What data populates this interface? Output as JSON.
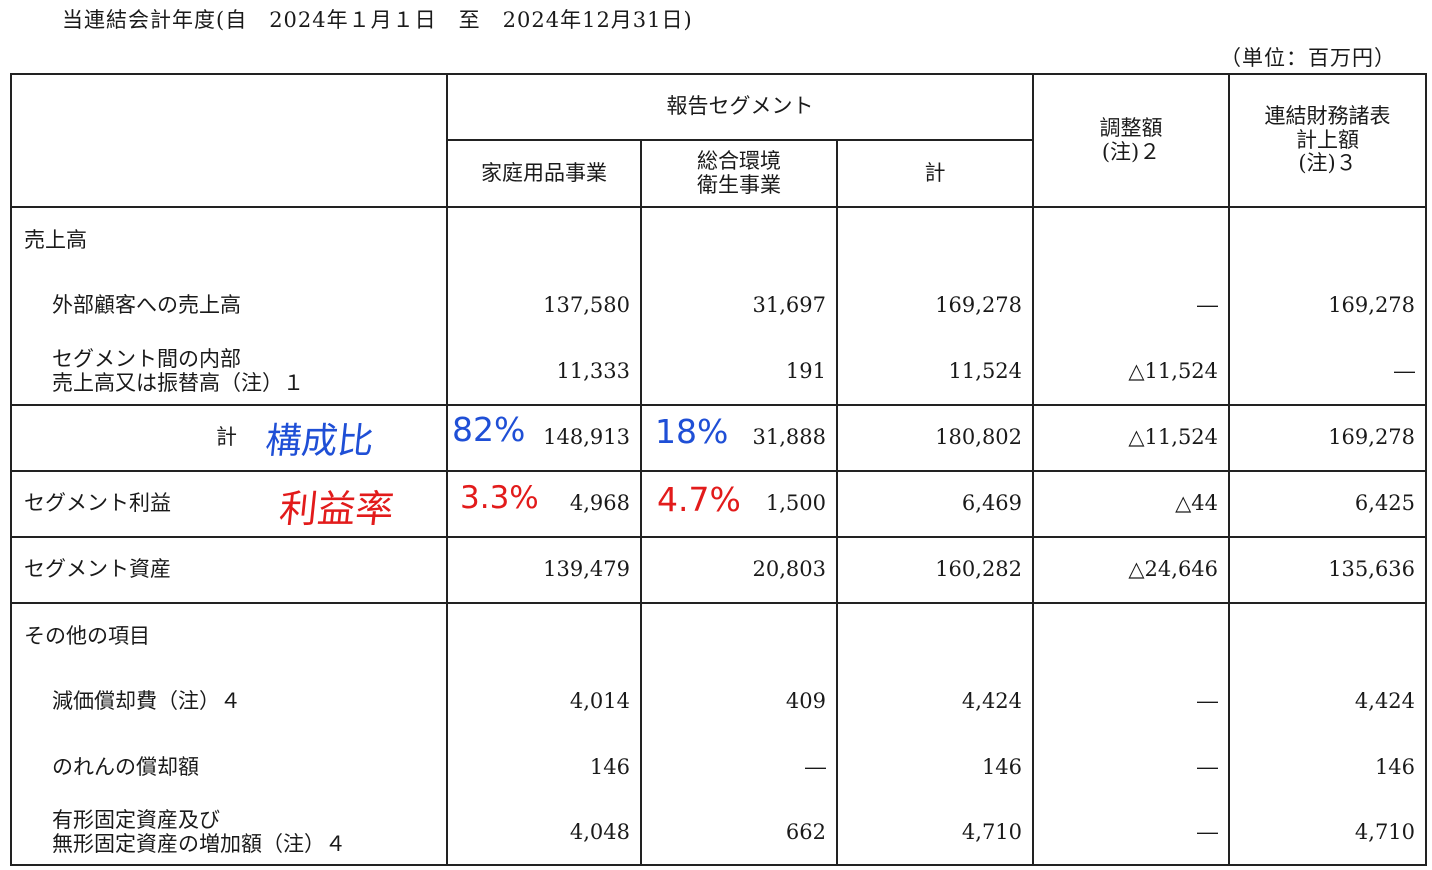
{
  "period": "当連結会計年度(自　2024年１月１日　至　2024年12月31日)",
  "unit": "（単位：百万円）",
  "header": {
    "reported_segments": "報告セグメント",
    "household": "家庭用品事業",
    "sanitation": "総合環境\n衛生事業",
    "subtotal": "計",
    "adjustment": "調整額\n(注)２",
    "consolidated": "連結財務諸表\n計上額\n(注)３"
  },
  "rows": {
    "sales_title": "売上高",
    "external": {
      "label": "外部顧客への売上高",
      "v": [
        "137,580",
        "31,697",
        "169,278",
        "―",
        "169,278"
      ]
    },
    "intersegment": {
      "label": "セグメント間の内部\n売上高又は振替高（注）１",
      "v": [
        "11,333",
        "191",
        "11,524",
        "△11,524",
        "―"
      ]
    },
    "total": {
      "label": "計",
      "v": [
        "148,913",
        "31,888",
        "180,802",
        "△11,524",
        "169,278"
      ]
    },
    "profit": {
      "label": "セグメント利益",
      "v": [
        "4,968",
        "1,500",
        "6,469",
        "△44",
        "6,425"
      ]
    },
    "assets": {
      "label": "セグメント資産",
      "v": [
        "139,479",
        "20,803",
        "160,282",
        "△24,646",
        "135,636"
      ]
    },
    "other_title": "その他の項目",
    "depreciation": {
      "label": "減価償却費（注）４",
      "v": [
        "4,014",
        "409",
        "4,424",
        "―",
        "4,424"
      ]
    },
    "goodwill": {
      "label": "のれんの償却額",
      "v": [
        "146",
        "―",
        "146",
        "―",
        "146"
      ]
    },
    "capex": {
      "label": "有形固定資産及び\n無形固定資産の増加額（注）４",
      "v": [
        "4,048",
        "662",
        "4,710",
        "―",
        "4,710"
      ]
    }
  },
  "annotations": {
    "composition_label": "構成比",
    "composition_household": "82%",
    "composition_sanitation": "18%",
    "margin_label": "利益率",
    "margin_household": "3.3%",
    "margin_sanitation": "4.7%",
    "blue": "#1f4fd6",
    "red": "#e21b1b"
  }
}
